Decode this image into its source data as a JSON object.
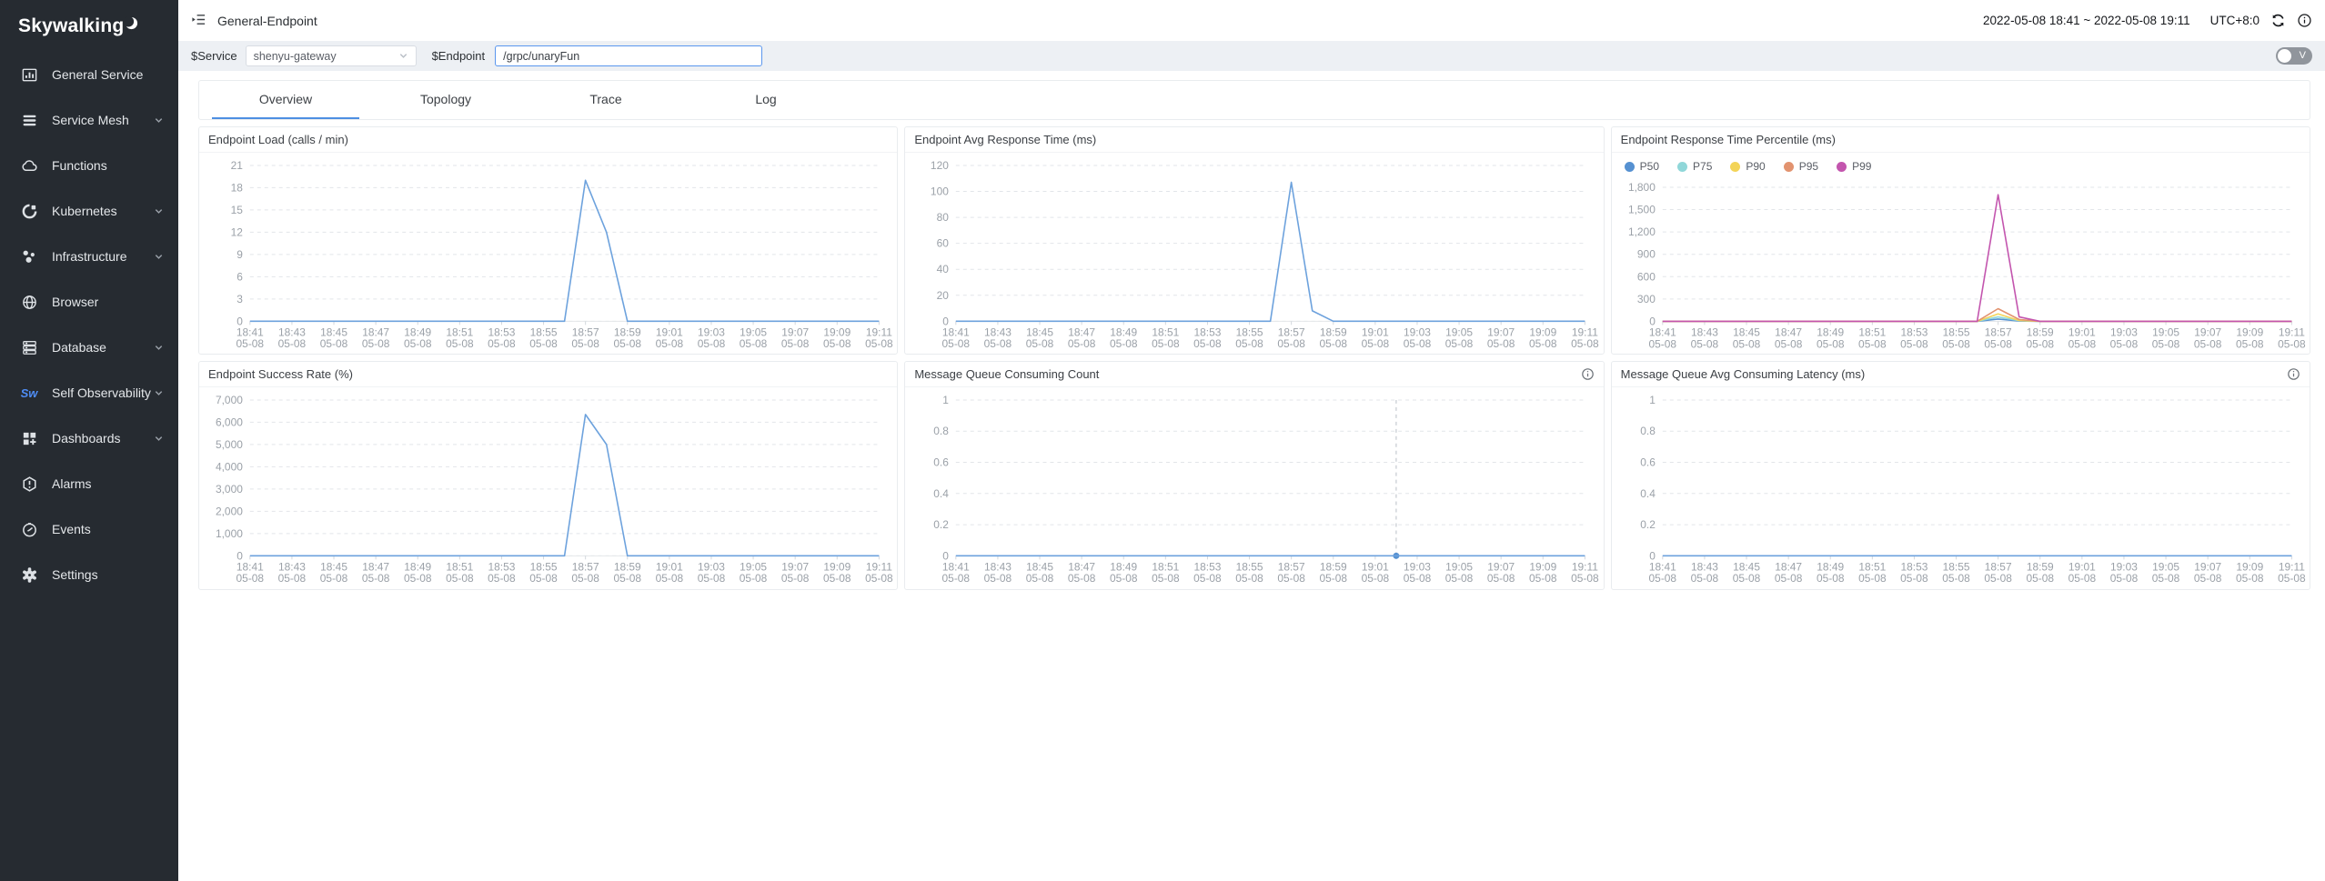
{
  "sidebar": {
    "logo": "Skywalking",
    "items": [
      {
        "label": "General Service",
        "expandable": false
      },
      {
        "label": "Service Mesh",
        "expandable": true
      },
      {
        "label": "Functions",
        "expandable": false
      },
      {
        "label": "Kubernetes",
        "expandable": true
      },
      {
        "label": "Infrastructure",
        "expandable": true
      },
      {
        "label": "Browser",
        "expandable": false
      },
      {
        "label": "Database",
        "expandable": true
      },
      {
        "label": "Self Observability",
        "expandable": true
      },
      {
        "label": "Dashboards",
        "expandable": true
      },
      {
        "label": "Alarms",
        "expandable": false
      },
      {
        "label": "Events",
        "expandable": false
      },
      {
        "label": "Settings",
        "expandable": false
      }
    ]
  },
  "header": {
    "title": "General-Endpoint",
    "time_range": "2022-05-08 18:41 ~ 2022-05-08 19:11",
    "timezone": "UTC+8:0"
  },
  "filters": {
    "service_label": "$Service",
    "service_value": "shenyu-gateway",
    "endpoint_label": "$Endpoint",
    "endpoint_value": "/grpc/unaryFun",
    "toggle_label": "V"
  },
  "tabs": [
    {
      "label": "Overview",
      "active": true
    },
    {
      "label": "Topology",
      "active": false
    },
    {
      "label": "Trace",
      "active": false
    },
    {
      "label": "Log",
      "active": false
    }
  ],
  "colors": {
    "accent": "#4d8fe2",
    "sidebar_bg": "#262b31",
    "line_blue": "#6da2dd",
    "p50": "#5691d1",
    "p75": "#90d7d9",
    "p90": "#f3d458",
    "p95": "#e2936f",
    "p99": "#c355ae"
  },
  "chart_data": [
    {
      "type": "line",
      "title": "Endpoint Load (calls / min)",
      "info_icon": false,
      "legend": false,
      "ylim": [
        0,
        21
      ],
      "y_ticks": [
        0,
        3,
        6,
        9,
        12,
        15,
        18,
        21
      ],
      "x_labels": [
        "18:41",
        "18:43",
        "18:45",
        "18:47",
        "18:49",
        "18:51",
        "18:53",
        "18:55",
        "18:57",
        "18:59",
        "19:01",
        "19:03",
        "19:05",
        "19:07",
        "19:09",
        "19:11"
      ],
      "x_sub": "05-08",
      "series": [
        {
          "name": "Endpoint Load",
          "color": "#6da2dd",
          "values": [
            0,
            0,
            0,
            0,
            0,
            0,
            0,
            0,
            0,
            0,
            0,
            0,
            0,
            0,
            0,
            0,
            19,
            12,
            0,
            0,
            0,
            0,
            0,
            0,
            0,
            0,
            0,
            0,
            0,
            0,
            0
          ]
        }
      ],
      "crosshair_index": null
    },
    {
      "type": "line",
      "title": "Endpoint Avg Response Time (ms)",
      "info_icon": false,
      "legend": false,
      "ylim": [
        0,
        120
      ],
      "y_ticks": [
        0,
        20,
        40,
        60,
        80,
        100,
        120
      ],
      "x_labels": [
        "18:41",
        "18:43",
        "18:45",
        "18:47",
        "18:49",
        "18:51",
        "18:53",
        "18:55",
        "18:57",
        "18:59",
        "19:01",
        "19:03",
        "19:05",
        "19:07",
        "19:09",
        "19:11"
      ],
      "x_sub": "05-08",
      "series": [
        {
          "name": "Avg Response Time",
          "color": "#6da2dd",
          "values": [
            0,
            0,
            0,
            0,
            0,
            0,
            0,
            0,
            0,
            0,
            0,
            0,
            0,
            0,
            0,
            0,
            107,
            8,
            0,
            0,
            0,
            0,
            0,
            0,
            0,
            0,
            0,
            0,
            0,
            0,
            0
          ]
        }
      ],
      "crosshair_index": null
    },
    {
      "type": "line",
      "title": "Endpoint Response Time Percentile (ms)",
      "info_icon": false,
      "legend": true,
      "ylim": [
        0,
        1800
      ],
      "y_ticks": [
        0,
        300,
        600,
        900,
        1200,
        1500,
        1800
      ],
      "x_labels": [
        "18:41",
        "18:43",
        "18:45",
        "18:47",
        "18:49",
        "18:51",
        "18:53",
        "18:55",
        "18:57",
        "18:59",
        "19:01",
        "19:03",
        "19:05",
        "19:07",
        "19:09",
        "19:11"
      ],
      "x_sub": "05-08",
      "series": [
        {
          "name": "P50",
          "color": "#5691d1",
          "values": [
            0,
            0,
            0,
            0,
            0,
            0,
            0,
            0,
            0,
            0,
            0,
            0,
            0,
            0,
            0,
            0,
            30,
            5,
            0,
            0,
            0,
            0,
            0,
            0,
            0,
            0,
            0,
            0,
            0,
            0,
            0
          ]
        },
        {
          "name": "P75",
          "color": "#90d7d9",
          "values": [
            0,
            0,
            0,
            0,
            0,
            0,
            0,
            0,
            0,
            0,
            0,
            0,
            0,
            0,
            0,
            0,
            60,
            8,
            0,
            0,
            0,
            0,
            0,
            0,
            0,
            0,
            0,
            0,
            0,
            0,
            0
          ]
        },
        {
          "name": "P90",
          "color": "#f3d458",
          "values": [
            0,
            0,
            0,
            0,
            0,
            0,
            0,
            0,
            0,
            0,
            0,
            0,
            0,
            0,
            0,
            0,
            100,
            12,
            0,
            0,
            0,
            0,
            0,
            0,
            0,
            0,
            0,
            0,
            0,
            0,
            0
          ]
        },
        {
          "name": "P95",
          "color": "#e2936f",
          "values": [
            0,
            0,
            0,
            0,
            0,
            0,
            0,
            0,
            0,
            0,
            0,
            0,
            0,
            0,
            0,
            0,
            170,
            25,
            0,
            0,
            0,
            0,
            0,
            0,
            0,
            0,
            0,
            0,
            0,
            0,
            0
          ]
        },
        {
          "name": "P99",
          "color": "#c355ae",
          "values": [
            0,
            0,
            0,
            0,
            0,
            0,
            0,
            0,
            0,
            0,
            0,
            0,
            0,
            0,
            0,
            0,
            1700,
            60,
            0,
            0,
            0,
            0,
            0,
            0,
            0,
            0,
            0,
            0,
            0,
            0,
            0
          ]
        }
      ],
      "crosshair_index": null
    },
    {
      "type": "line",
      "title": "Endpoint Success Rate (%)",
      "info_icon": false,
      "legend": false,
      "ylim": [
        0,
        7000
      ],
      "y_ticks": [
        0,
        1000,
        2000,
        3000,
        4000,
        5000,
        6000,
        7000
      ],
      "x_labels": [
        "18:41",
        "18:43",
        "18:45",
        "18:47",
        "18:49",
        "18:51",
        "18:53",
        "18:55",
        "18:57",
        "18:59",
        "19:01",
        "19:03",
        "19:05",
        "19:07",
        "19:09",
        "19:11"
      ],
      "x_sub": "05-08",
      "series": [
        {
          "name": "Success Rate",
          "color": "#6da2dd",
          "values": [
            0,
            0,
            0,
            0,
            0,
            0,
            0,
            0,
            0,
            0,
            0,
            0,
            0,
            0,
            0,
            0,
            6350,
            5000,
            0,
            0,
            0,
            0,
            0,
            0,
            0,
            0,
            0,
            0,
            0,
            0,
            0
          ]
        }
      ],
      "crosshair_index": null
    },
    {
      "type": "line",
      "title": "Message Queue Consuming Count",
      "info_icon": true,
      "legend": false,
      "ylim": [
        0,
        1
      ],
      "y_ticks": [
        0,
        0.2,
        0.4,
        0.6,
        0.8,
        1
      ],
      "x_labels": [
        "18:41",
        "18:43",
        "18:45",
        "18:47",
        "18:49",
        "18:51",
        "18:53",
        "18:55",
        "18:57",
        "18:59",
        "19:01",
        "19:03",
        "19:05",
        "19:07",
        "19:09",
        "19:11"
      ],
      "x_sub": "05-08",
      "series": [
        {
          "name": "Consuming Count",
          "color": "#6da2dd",
          "values": [
            0,
            0,
            0,
            0,
            0,
            0,
            0,
            0,
            0,
            0,
            0,
            0,
            0,
            0,
            0,
            0,
            0,
            0,
            0,
            0,
            0,
            0,
            0,
            0,
            0,
            0,
            0,
            0,
            0,
            0,
            0
          ]
        }
      ],
      "crosshair_index": 21
    },
    {
      "type": "line",
      "title": "Message Queue Avg Consuming Latency (ms)",
      "info_icon": true,
      "legend": false,
      "ylim": [
        0,
        1
      ],
      "y_ticks": [
        0,
        0.2,
        0.4,
        0.6,
        0.8,
        1
      ],
      "x_labels": [
        "18:41",
        "18:43",
        "18:45",
        "18:47",
        "18:49",
        "18:51",
        "18:53",
        "18:55",
        "18:57",
        "18:59",
        "19:01",
        "19:03",
        "19:05",
        "19:07",
        "19:09",
        "19:11"
      ],
      "x_sub": "05-08",
      "series": [
        {
          "name": "Avg Consuming Latency",
          "color": "#6da2dd",
          "values": [
            0,
            0,
            0,
            0,
            0,
            0,
            0,
            0,
            0,
            0,
            0,
            0,
            0,
            0,
            0,
            0,
            0,
            0,
            0,
            0,
            0,
            0,
            0,
            0,
            0,
            0,
            0,
            0,
            0,
            0,
            0
          ]
        }
      ],
      "crosshair_index": null
    }
  ]
}
